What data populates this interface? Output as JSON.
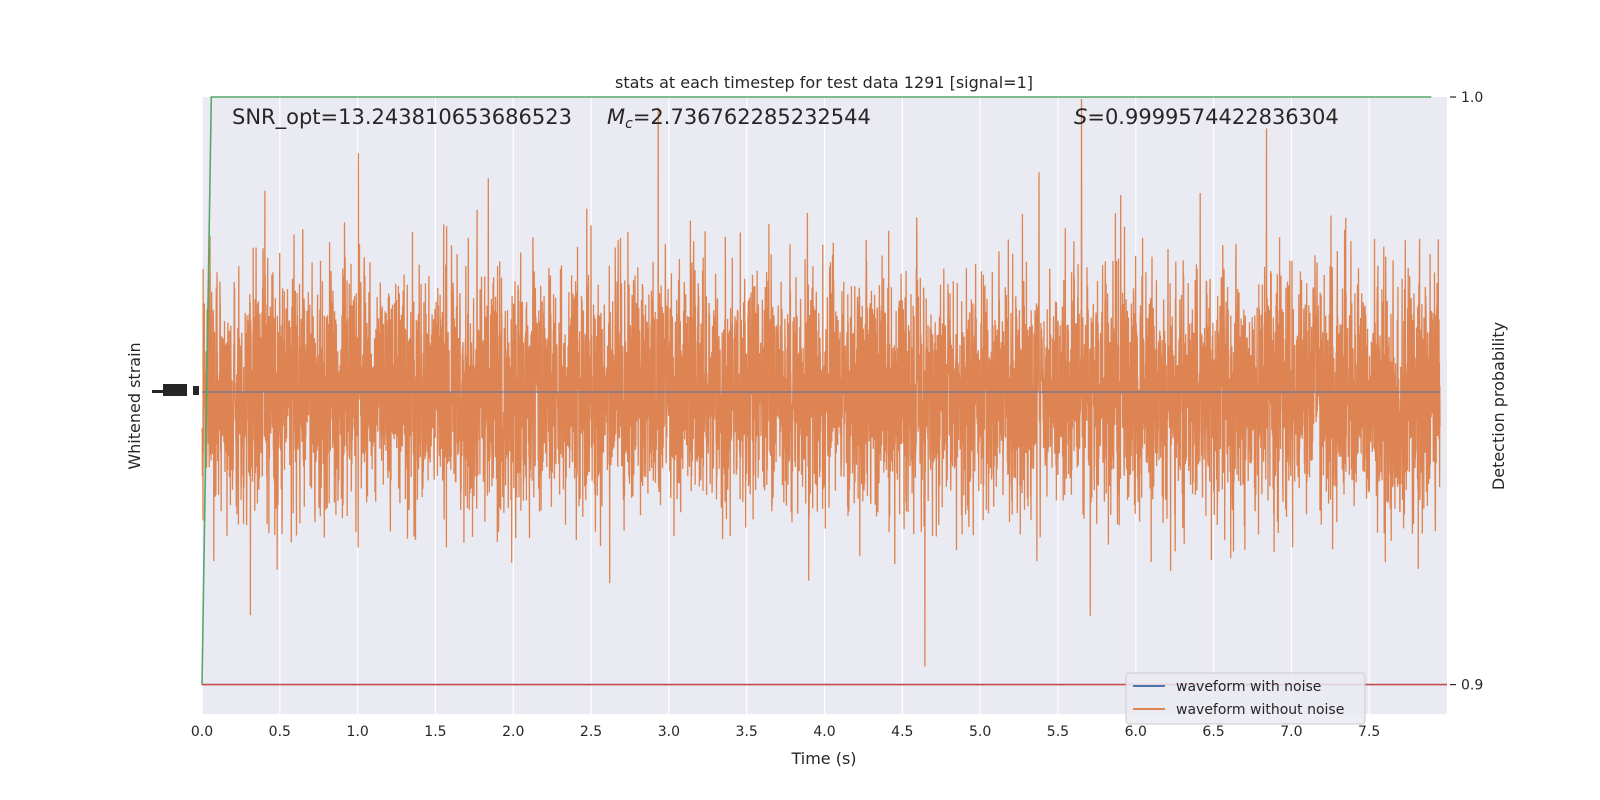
{
  "chart_data": {
    "type": "line",
    "title": "stats at each timestep for test data 1291 [signal=1]",
    "xlabel": "Time (s)",
    "ylabel_left": "Whitened strain",
    "ylabel_right": "Detection probability",
    "xlim": [
      0.0,
      8.0
    ],
    "xticks": [
      "0.0",
      "0.5",
      "1.0",
      "1.5",
      "2.0",
      "2.5",
      "3.0",
      "3.5",
      "4.0",
      "4.5",
      "5.0",
      "5.5",
      "6.0",
      "6.5",
      "7.0",
      "7.5"
    ],
    "ylim_right": [
      0.895,
      1.0
    ],
    "yticks_right": [
      "0.9",
      "1.0"
    ],
    "grid": true,
    "legend": {
      "placement": "lower-right",
      "entries": [
        "waveform with noise",
        "waveform without noise"
      ]
    },
    "annotations": {
      "snr": "SNR_opt=13.243810653686523",
      "mc_symbol": "M",
      "mc_subscript": "c",
      "mc_value": "=2.736762285232544",
      "s_symbol": "S",
      "s_value": "=0.9999574422836304"
    },
    "series": [
      {
        "name": "waveform with noise",
        "color": "#4c72b0",
        "kind": "strain"
      },
      {
        "name": "waveform without noise",
        "color": "#dd8452",
        "kind": "strain-noise",
        "amplitude_note": "dense noise spanning roughly the full plot height"
      },
      {
        "color": "#55a868",
        "kind": "probability",
        "x": [
          0.0,
          0.06,
          0.12,
          7.9
        ],
        "y": [
          0.9,
          1.0,
          1.0,
          1.0
        ]
      },
      {
        "color": "#c44e52",
        "kind": "threshold",
        "x": [
          0.0,
          8.0
        ],
        "y": [
          0.9,
          0.9
        ]
      }
    ]
  },
  "colors": {
    "axes_bg": "#eaeaf2",
    "grid": "#ffffff",
    "text": "#262626"
  }
}
